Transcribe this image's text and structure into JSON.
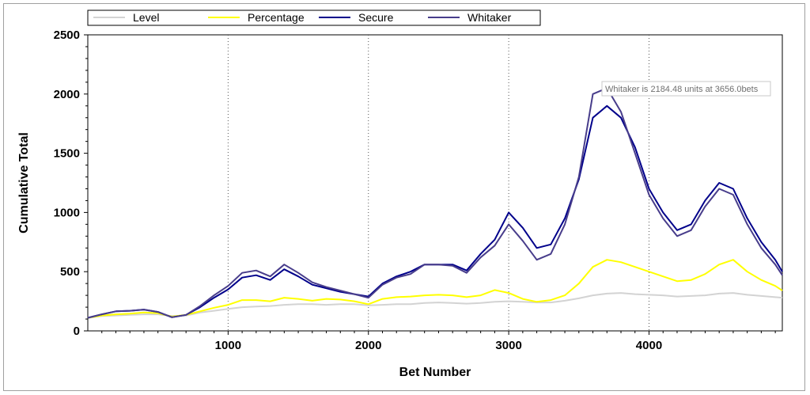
{
  "chart_data": {
    "type": "line",
    "title": "",
    "xlabel": "Bet Number",
    "ylabel": "Cumulative Total",
    "xlim": [
      0,
      4950
    ],
    "ylim": [
      0,
      2500
    ],
    "xticks": [
      1000,
      2000,
      3000,
      4000
    ],
    "yticks": [
      0,
      500,
      1000,
      1500,
      2000,
      2500
    ],
    "x_gridlines": "dotted vertical at major x ticks",
    "legend_position": "top",
    "tooltip": "Whitaker is 2184.48 units at 3656.0bets",
    "colors": {
      "Level": "#d3d3d3",
      "Percentage": "#ffff00",
      "Secure": "#00008b",
      "Whitaker": "#483d8b"
    },
    "series": [
      {
        "name": "Level",
        "x": [
          0,
          100,
          200,
          300,
          400,
          500,
          600,
          700,
          800,
          900,
          1000,
          1100,
          1200,
          1300,
          1400,
          1500,
          1600,
          1700,
          1800,
          1900,
          2000,
          2100,
          2200,
          2300,
          2400,
          2500,
          2600,
          2700,
          2800,
          2900,
          3000,
          3100,
          3200,
          3300,
          3400,
          3500,
          3600,
          3700,
          3800,
          3900,
          4000,
          4100,
          4200,
          4300,
          4400,
          4500,
          4600,
          4700,
          4800,
          4900,
          4950
        ],
        "values": [
          110,
          125,
          130,
          135,
          140,
          140,
          125,
          130,
          155,
          170,
          185,
          200,
          205,
          210,
          220,
          225,
          225,
          220,
          225,
          225,
          215,
          220,
          225,
          225,
          235,
          240,
          235,
          230,
          235,
          245,
          250,
          245,
          240,
          240,
          255,
          275,
          300,
          315,
          320,
          310,
          305,
          300,
          290,
          295,
          300,
          315,
          320,
          305,
          295,
          285,
          280
        ]
      },
      {
        "name": "Percentage",
        "x": [
          0,
          100,
          200,
          300,
          400,
          500,
          600,
          700,
          800,
          900,
          1000,
          1100,
          1200,
          1300,
          1400,
          1500,
          1600,
          1700,
          1800,
          1900,
          2000,
          2100,
          2200,
          2300,
          2400,
          2500,
          2600,
          2700,
          2800,
          2900,
          3000,
          3100,
          3200,
          3300,
          3400,
          3500,
          3600,
          3700,
          3800,
          3900,
          4000,
          4100,
          4200,
          4300,
          4400,
          4500,
          4600,
          4700,
          4800,
          4900,
          4950
        ],
        "values": [
          110,
          130,
          140,
          145,
          155,
          150,
          120,
          135,
          165,
          195,
          220,
          260,
          260,
          250,
          280,
          270,
          255,
          270,
          265,
          250,
          225,
          270,
          285,
          290,
          300,
          305,
          300,
          285,
          300,
          345,
          320,
          270,
          245,
          260,
          300,
          400,
          540,
          600,
          580,
          540,
          500,
          460,
          420,
          430,
          480,
          560,
          600,
          500,
          430,
          380,
          340
        ]
      },
      {
        "name": "Secure",
        "x": [
          0,
          100,
          200,
          300,
          400,
          500,
          600,
          700,
          800,
          900,
          1000,
          1100,
          1200,
          1300,
          1400,
          1500,
          1600,
          1700,
          1800,
          1900,
          2000,
          2100,
          2200,
          2300,
          2400,
          2500,
          2600,
          2700,
          2800,
          2900,
          3000,
          3100,
          3200,
          3300,
          3400,
          3500,
          3600,
          3700,
          3800,
          3900,
          4000,
          4100,
          4200,
          4300,
          4400,
          4500,
          4600,
          4700,
          4800,
          4900,
          4950
        ],
        "values": [
          110,
          140,
          165,
          170,
          180,
          160,
          115,
          135,
          200,
          280,
          350,
          450,
          470,
          430,
          520,
          460,
          390,
          360,
          330,
          310,
          290,
          400,
          460,
          500,
          560,
          560,
          560,
          510,
          650,
          770,
          1000,
          870,
          700,
          730,
          950,
          1280,
          1800,
          1900,
          1800,
          1550,
          1200,
          1000,
          850,
          900,
          1100,
          1250,
          1200,
          950,
          750,
          600,
          500
        ]
      },
      {
        "name": "Whitaker",
        "x": [
          0,
          100,
          200,
          300,
          400,
          500,
          600,
          700,
          800,
          900,
          1000,
          1100,
          1200,
          1300,
          1400,
          1500,
          1600,
          1700,
          1800,
          1900,
          2000,
          2100,
          2200,
          2300,
          2400,
          2500,
          2600,
          2700,
          2800,
          2900,
          3000,
          3100,
          3200,
          3300,
          3400,
          3500,
          3600,
          3700,
          3800,
          3900,
          4000,
          4100,
          4200,
          4300,
          4400,
          4500,
          4600,
          4700,
          4800,
          4900,
          4950
        ],
        "values": [
          110,
          140,
          165,
          170,
          180,
          160,
          115,
          135,
          210,
          300,
          380,
          490,
          510,
          460,
          560,
          490,
          410,
          370,
          340,
          310,
          280,
          390,
          450,
          480,
          560,
          560,
          550,
          490,
          620,
          720,
          900,
          760,
          600,
          650,
          900,
          1300,
          2000,
          2050,
          1850,
          1500,
          1150,
          950,
          800,
          850,
          1050,
          1200,
          1150,
          900,
          700,
          560,
          470
        ]
      }
    ]
  }
}
